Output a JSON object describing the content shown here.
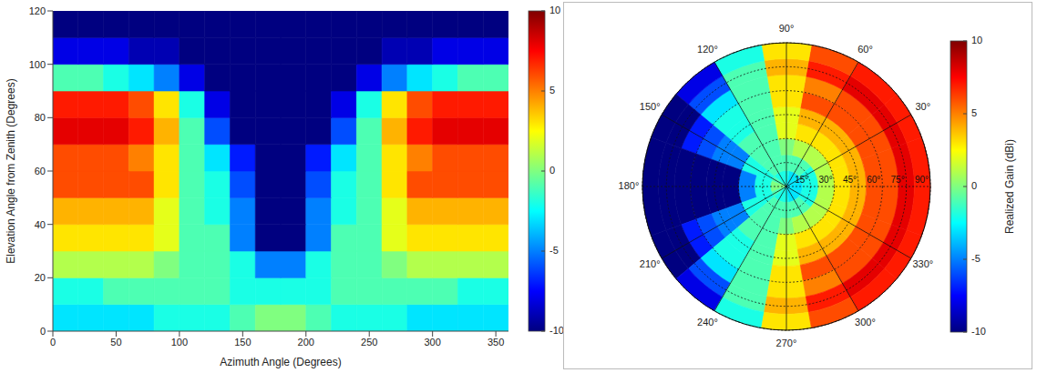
{
  "chart_data": [
    {
      "type": "heatmap",
      "x_label": "Azimuth Angle (Degrees)",
      "y_label": "Elevation Angle from Zenith (Degrees)",
      "xlim": [
        0,
        360
      ],
      "ylim": [
        0,
        120
      ],
      "xticks": [
        0,
        50,
        100,
        150,
        200,
        250,
        300,
        350
      ],
      "yticks": [
        0,
        20,
        40,
        60,
        80,
        100,
        120
      ],
      "grid": false,
      "x_edges": [
        0,
        20,
        40,
        60,
        80,
        100,
        120,
        140,
        160,
        180,
        200,
        220,
        240,
        260,
        280,
        300,
        320,
        340,
        360
      ],
      "y_edges": [
        0,
        10,
        20,
        30,
        40,
        50,
        60,
        70,
        80,
        90,
        100,
        110,
        120
      ],
      "cells": [
        [
          -3,
          -3,
          -3,
          -3,
          -2,
          -2,
          -2,
          -1,
          0,
          0,
          -1,
          -2,
          -2,
          -2,
          -3,
          -3,
          -3,
          -3
        ],
        [
          -2,
          -2,
          -1,
          -1,
          -1,
          -1,
          -1,
          -2,
          -2,
          -2,
          -2,
          -1,
          -1,
          -1,
          -1,
          -1,
          -2,
          -2
        ],
        [
          1,
          1,
          1,
          1,
          0,
          -1,
          -1,
          -2,
          -5,
          -5,
          -2,
          -1,
          -1,
          0,
          1,
          1,
          1,
          1
        ],
        [
          3,
          3,
          3,
          3,
          2,
          -1,
          -1,
          -5,
          -10,
          -10,
          -5,
          -1,
          -1,
          2,
          3,
          3,
          3,
          3
        ],
        [
          4,
          4,
          4,
          4,
          2,
          -1,
          -2,
          -5,
          -10,
          -10,
          -5,
          -2,
          -1,
          2,
          4,
          4,
          4,
          4
        ],
        [
          6,
          6,
          6,
          6,
          3,
          -1,
          -2,
          -6,
          -10,
          -10,
          -6,
          -2,
          -1,
          3,
          6,
          6,
          6,
          6
        ],
        [
          6,
          6,
          6,
          5,
          3,
          -1,
          -3,
          -7,
          -10,
          -10,
          -7,
          -3,
          -1,
          3,
          5,
          6,
          6,
          6
        ],
        [
          8,
          8,
          8,
          7,
          4,
          -1,
          -6,
          -10,
          -10,
          -10,
          -10,
          -6,
          -1,
          4,
          7,
          8,
          8,
          8
        ],
        [
          7,
          7,
          7,
          6,
          3,
          -2,
          -8,
          -10,
          -10,
          -10,
          -10,
          -8,
          -2,
          3,
          6,
          7,
          7,
          7
        ],
        [
          -1,
          -1,
          -2,
          -3,
          -5,
          -8,
          -10,
          -10,
          -10,
          -10,
          -10,
          -10,
          -8,
          -5,
          -3,
          -2,
          -1,
          -1
        ],
        [
          -8,
          -8,
          -8,
          -9,
          -9,
          -10,
          -10,
          -10,
          -10,
          -10,
          -10,
          -10,
          -10,
          -9,
          -9,
          -8,
          -8,
          -8
        ],
        [
          -10,
          -10,
          -10,
          -10,
          -10,
          -10,
          -10,
          -10,
          -10,
          -10,
          -10,
          -10,
          -10,
          -10,
          -10,
          -10,
          -10,
          -10
        ]
      ],
      "colorbar_range": [
        -10,
        10
      ],
      "colorbar_ticks": [
        -10,
        -5,
        0,
        5,
        10
      ]
    },
    {
      "type": "polar_heatmap",
      "colorbar_label": "Realized Gain (dBi)",
      "colorbar_range": [
        -10,
        10
      ],
      "colorbar_ticks": [
        -10,
        -5,
        0,
        5,
        10
      ],
      "rlim": [
        0,
        90
      ],
      "rticks": [
        {
          "value": 15,
          "label": "15°"
        },
        {
          "value": 30,
          "label": "30°"
        },
        {
          "value": 45,
          "label": "45°"
        },
        {
          "value": 60,
          "label": "60°"
        },
        {
          "value": 75,
          "label": "75°"
        },
        {
          "value": 90,
          "label": "90°"
        }
      ],
      "angle_ticks": [
        {
          "value": 30,
          "label": "30°"
        },
        {
          "value": 60,
          "label": "60°"
        },
        {
          "value": 90,
          "label": "90°"
        },
        {
          "value": 120,
          "label": "120°"
        },
        {
          "value": 150,
          "label": "150°"
        },
        {
          "value": 180,
          "label": "180°"
        },
        {
          "value": 210,
          "label": "210°"
        },
        {
          "value": 240,
          "label": "240°"
        },
        {
          "value": 270,
          "label": "270°"
        },
        {
          "value": 300,
          "label": "300°"
        },
        {
          "value": 330,
          "label": "330°"
        }
      ],
      "x_edges": [
        0,
        20,
        40,
        60,
        80,
        100,
        120,
        140,
        160,
        180,
        200,
        220,
        240,
        260,
        280,
        300,
        320,
        340,
        360
      ],
      "y_edges": [
        0,
        10,
        20,
        30,
        40,
        50,
        60,
        70,
        80,
        90
      ],
      "cells": [
        [
          -3,
          -3,
          -3,
          -3,
          -2,
          -2,
          -2,
          -1,
          0,
          0,
          -1,
          -2,
          -2,
          -2,
          -3,
          -3,
          -3,
          -3
        ],
        [
          -2,
          -2,
          -1,
          -1,
          -1,
          -1,
          -1,
          -2,
          -2,
          -2,
          -2,
          -1,
          -1,
          -1,
          -1,
          -1,
          -2,
          -2
        ],
        [
          1,
          1,
          1,
          1,
          0,
          -1,
          -1,
          -2,
          -5,
          -5,
          -2,
          -1,
          -1,
          0,
          1,
          1,
          1,
          1
        ],
        [
          3,
          3,
          3,
          3,
          2,
          -1,
          -1,
          -5,
          -10,
          -10,
          -5,
          -1,
          -1,
          2,
          3,
          3,
          3,
          3
        ],
        [
          4,
          4,
          4,
          4,
          2,
          -1,
          -2,
          -5,
          -10,
          -10,
          -5,
          -2,
          -1,
          2,
          4,
          4,
          4,
          4
        ],
        [
          6,
          6,
          6,
          6,
          3,
          -1,
          -2,
          -6,
          -10,
          -10,
          -6,
          -2,
          -1,
          3,
          6,
          6,
          6,
          6
        ],
        [
          6,
          6,
          6,
          5,
          3,
          -1,
          -3,
          -7,
          -10,
          -10,
          -7,
          -3,
          -1,
          3,
          5,
          6,
          6,
          6
        ],
        [
          8,
          8,
          8,
          7,
          4,
          -1,
          -6,
          -10,
          -10,
          -10,
          -10,
          -6,
          -1,
          4,
          7,
          8,
          8,
          8
        ],
        [
          7,
          7,
          7,
          6,
          3,
          -2,
          -8,
          -10,
          -10,
          -10,
          -10,
          -8,
          -2,
          3,
          6,
          7,
          7,
          7
        ]
      ]
    }
  ]
}
